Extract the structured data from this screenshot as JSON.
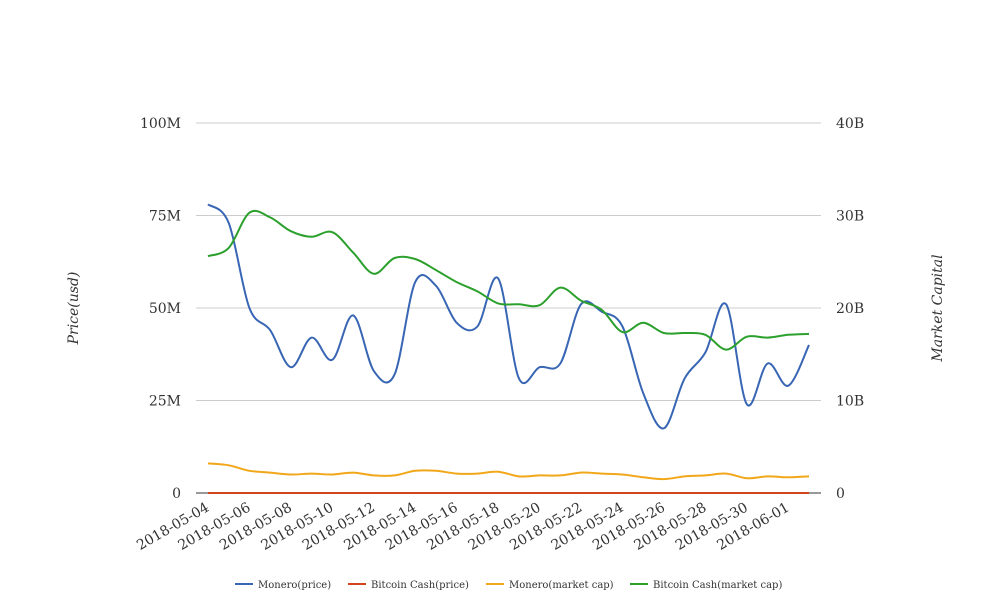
{
  "chart_data": {
    "type": "line",
    "x": [
      "2018-05-04",
      "2018-05-05",
      "2018-05-06",
      "2018-05-07",
      "2018-05-08",
      "2018-05-09",
      "2018-05-10",
      "2018-05-11",
      "2018-05-12",
      "2018-05-13",
      "2018-05-14",
      "2018-05-15",
      "2018-05-16",
      "2018-05-17",
      "2018-05-18",
      "2018-05-19",
      "2018-05-20",
      "2018-05-21",
      "2018-05-22",
      "2018-05-23",
      "2018-05-24",
      "2018-05-25",
      "2018-05-26",
      "2018-05-27",
      "2018-05-28",
      "2018-05-29",
      "2018-05-30",
      "2018-05-31",
      "2018-06-01",
      "2018-06-02"
    ],
    "x_tick_labels": [
      "2018-05-04",
      "2018-05-06",
      "2018-05-08",
      "2018-05-10",
      "2018-05-12",
      "2018-05-14",
      "2018-05-16",
      "2018-05-18",
      "2018-05-20",
      "2018-05-22",
      "2018-05-24",
      "2018-05-26",
      "2018-05-28",
      "2018-05-30",
      "2018-06-01"
    ],
    "y_left": {
      "label": "Price(usd)",
      "ticks": [
        "0",
        "25M",
        "50M",
        "75M",
        "100M"
      ],
      "range": [
        0,
        100000000
      ]
    },
    "y_right": {
      "label": "Market Capital",
      "ticks": [
        "0",
        "10B",
        "20B",
        "30B",
        "40B"
      ],
      "range": [
        0,
        40000000000
      ]
    },
    "grid": true,
    "legend_position": "bottom",
    "series": [
      {
        "name": "Monero(price)",
        "color": "#3866b4",
        "axis": "left",
        "values": [
          78000000,
          73000000,
          50000000,
          44000000,
          34000000,
          42000000,
          36000000,
          48000000,
          33000000,
          32000000,
          57000000,
          56000000,
          46000000,
          45000000,
          58000000,
          31000000,
          34000000,
          35000000,
          51000000,
          49000000,
          45000000,
          27000000,
          17500000,
          31000000,
          38000000,
          51000000,
          24000000,
          35000000,
          29000000,
          40000000
        ]
      },
      {
        "name": "Bitcoin Cash(price)",
        "color": "#d2441c",
        "axis": "left",
        "values": [
          1500,
          1600,
          1650,
          1620,
          1580,
          1600,
          1560,
          1500,
          1400,
          1420,
          1450,
          1420,
          1380,
          1350,
          1340,
          1320,
          1300,
          1320,
          1280,
          1240,
          1150,
          1120,
          1100,
          1090,
          1080,
          1050,
          1000,
          1050,
          1040,
          1050
        ]
      },
      {
        "name": "Monero(market cap)",
        "color": "#f2a71a",
        "axis": "right",
        "values": [
          3200000000,
          3000000000,
          2400000000,
          2200000000,
          2000000000,
          2100000000,
          2000000000,
          2200000000,
          1900000000,
          1900000000,
          2400000000,
          2400000000,
          2100000000,
          2100000000,
          2300000000,
          1800000000,
          1900000000,
          1900000000,
          2200000000,
          2100000000,
          2000000000,
          1700000000,
          1500000000,
          1800000000,
          1900000000,
          2100000000,
          1600000000,
          1800000000,
          1700000000,
          1800000000
        ]
      },
      {
        "name": "Bitcoin Cash(market cap)",
        "color": "#2ca02c",
        "axis": "right",
        "values": [
          25600000000,
          26500000000,
          30300000000,
          29800000000,
          28300000000,
          27700000000,
          28200000000,
          26000000000,
          23700000000,
          25400000000,
          25300000000,
          24100000000,
          22800000000,
          21800000000,
          20500000000,
          20400000000,
          20300000000,
          22200000000,
          20800000000,
          19800000000,
          17400000000,
          18400000000,
          17300000000,
          17300000000,
          17100000000,
          15500000000,
          16900000000,
          16800000000,
          17100000000,
          17200000000
        ]
      }
    ]
  }
}
